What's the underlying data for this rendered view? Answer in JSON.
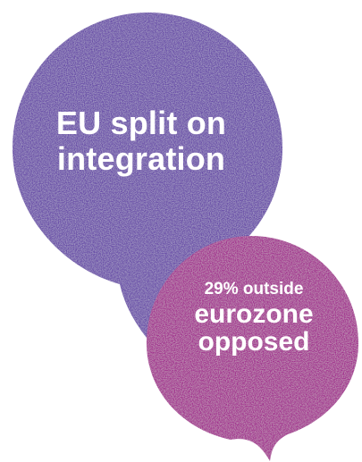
{
  "bubbles": {
    "large": {
      "lines": [
        "EU split on",
        "integration"
      ],
      "color": "#6a50a8"
    },
    "small": {
      "lines": [
        "29% outside",
        "eurozone",
        "opposed"
      ],
      "color": "#a2338f"
    }
  },
  "colors": {
    "background": "#ffffff",
    "text": "#ffffff"
  }
}
